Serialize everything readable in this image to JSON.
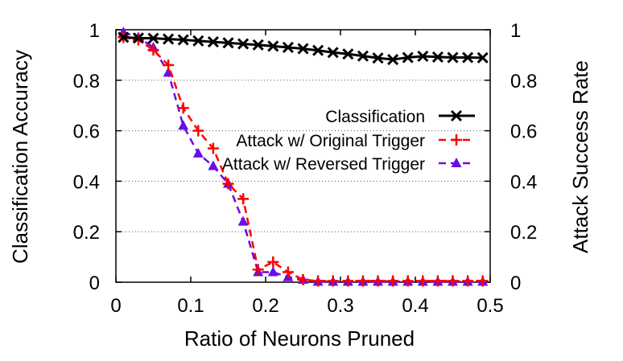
{
  "chart_data": {
    "type": "line",
    "title": "",
    "xlabel": "Ratio of Neurons Pruned",
    "ylabel": "Classification Accuracy",
    "y2label": "Attack Success Rate",
    "xlim": [
      0,
      0.5
    ],
    "ylim": [
      0,
      1
    ],
    "y2lim": [
      0,
      1
    ],
    "x_ticks": [
      {
        "value": 0,
        "label": "0"
      },
      {
        "value": 0.1,
        "label": "0.1"
      },
      {
        "value": 0.2,
        "label": "0.2"
      },
      {
        "value": 0.3,
        "label": "0.3"
      },
      {
        "value": 0.4,
        "label": "0.4"
      },
      {
        "value": 0.5,
        "label": "0.5"
      }
    ],
    "y_ticks": [
      {
        "value": 0,
        "label": "0"
      },
      {
        "value": 0.2,
        "label": "0.2"
      },
      {
        "value": 0.4,
        "label": "0.4"
      },
      {
        "value": 0.6,
        "label": "0.6"
      },
      {
        "value": 0.8,
        "label": "0.8"
      },
      {
        "value": 1,
        "label": "1"
      }
    ],
    "grid": "horizontal-dotted",
    "legend_position": "right-middle",
    "x": [
      0.01,
      0.03,
      0.05,
      0.07,
      0.09,
      0.11,
      0.13,
      0.15,
      0.17,
      0.19,
      0.21,
      0.23,
      0.25,
      0.27,
      0.29,
      0.31,
      0.33,
      0.35,
      0.37,
      0.39,
      0.41,
      0.43,
      0.45,
      0.47,
      0.49
    ],
    "series": [
      {
        "name": "Classification",
        "color": "#000000",
        "marker": "x",
        "dash": "solid",
        "values": [
          0.97,
          0.967,
          0.966,
          0.963,
          0.96,
          0.956,
          0.952,
          0.948,
          0.944,
          0.94,
          0.935,
          0.93,
          0.925,
          0.918,
          0.91,
          0.904,
          0.896,
          0.888,
          0.882,
          0.89,
          0.895,
          0.892,
          0.89,
          0.89,
          0.889
        ]
      },
      {
        "name": "Attack w/ Original Trigger",
        "color": "#ff0000",
        "marker": "plus",
        "dash": "dashed",
        "values": [
          0.97,
          0.96,
          0.92,
          0.86,
          0.69,
          0.6,
          0.53,
          0.39,
          0.33,
          0.05,
          0.08,
          0.04,
          0.01,
          0.005,
          0.005,
          0.005,
          0.005,
          0.005,
          0.005,
          0.005,
          0.005,
          0.005,
          0.005,
          0.005,
          0.005
        ]
      },
      {
        "name": "Attack w/ Reversed Trigger",
        "color": "#6a0ce6",
        "marker": "triangle",
        "dash": "dashed",
        "values": [
          0.99,
          0.97,
          0.93,
          0.83,
          0.62,
          0.51,
          0.46,
          0.39,
          0.24,
          0.04,
          0.04,
          0.02,
          0.01,
          0.002,
          0.002,
          0.002,
          0.002,
          0.002,
          0.002,
          0.002,
          0.002,
          0.002,
          0.002,
          0.002,
          0.002
        ]
      }
    ]
  }
}
